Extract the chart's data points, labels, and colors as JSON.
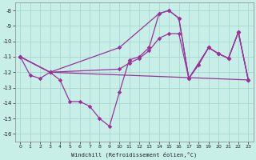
{
  "xlabel": "Windchill (Refroidissement éolien,°C)",
  "background_color": "#c8eee8",
  "grid_color": "#a0d4cc",
  "line_color": "#993399",
  "xlim": [
    -0.5,
    23.5
  ],
  "ylim": [
    -16.5,
    -7.5
  ],
  "yticks": [
    -16,
    -15,
    -14,
    -13,
    -12,
    -11,
    -10,
    -9,
    -8
  ],
  "xticks": [
    0,
    1,
    2,
    3,
    4,
    5,
    6,
    7,
    8,
    9,
    10,
    11,
    12,
    13,
    14,
    15,
    16,
    17,
    18,
    19,
    20,
    21,
    22,
    23
  ],
  "curve1_x": [
    0,
    1,
    2,
    3,
    4,
    5,
    6,
    7,
    8,
    9,
    10,
    11,
    12,
    13,
    14,
    15,
    16,
    17,
    18,
    19,
    20,
    21,
    22,
    23
  ],
  "curve1_y": [
    -11.0,
    -12.2,
    -12.4,
    -12.0,
    -12.5,
    -13.9,
    -13.9,
    -14.2,
    -15.0,
    -15.5,
    -13.3,
    -11.2,
    -11.0,
    -10.4,
    -8.2,
    -8.0,
    -8.5,
    -12.4,
    -11.5,
    -10.4,
    -10.8,
    -11.1,
    -9.4,
    -12.5
  ],
  "curve2_x": [
    0,
    3,
    10,
    14,
    15,
    16,
    17,
    19,
    20,
    21,
    22,
    23
  ],
  "curve2_y": [
    -11.0,
    -12.0,
    -10.4,
    -8.2,
    -8.0,
    -8.5,
    -12.4,
    -10.4,
    -10.8,
    -11.1,
    -9.4,
    -12.5
  ],
  "curve3_x": [
    0,
    3,
    10,
    11,
    12,
    13,
    14,
    15,
    16,
    17,
    18,
    19,
    20,
    21,
    22,
    23
  ],
  "curve3_y": [
    -11.0,
    -12.0,
    -11.8,
    -11.4,
    -11.1,
    -10.6,
    -9.8,
    -9.5,
    -9.5,
    -12.4,
    -11.5,
    -10.4,
    -10.8,
    -11.1,
    -9.4,
    -12.5
  ],
  "curve4_x": [
    0,
    3,
    23
  ],
  "curve4_y": [
    -11.0,
    -12.0,
    -12.5
  ]
}
